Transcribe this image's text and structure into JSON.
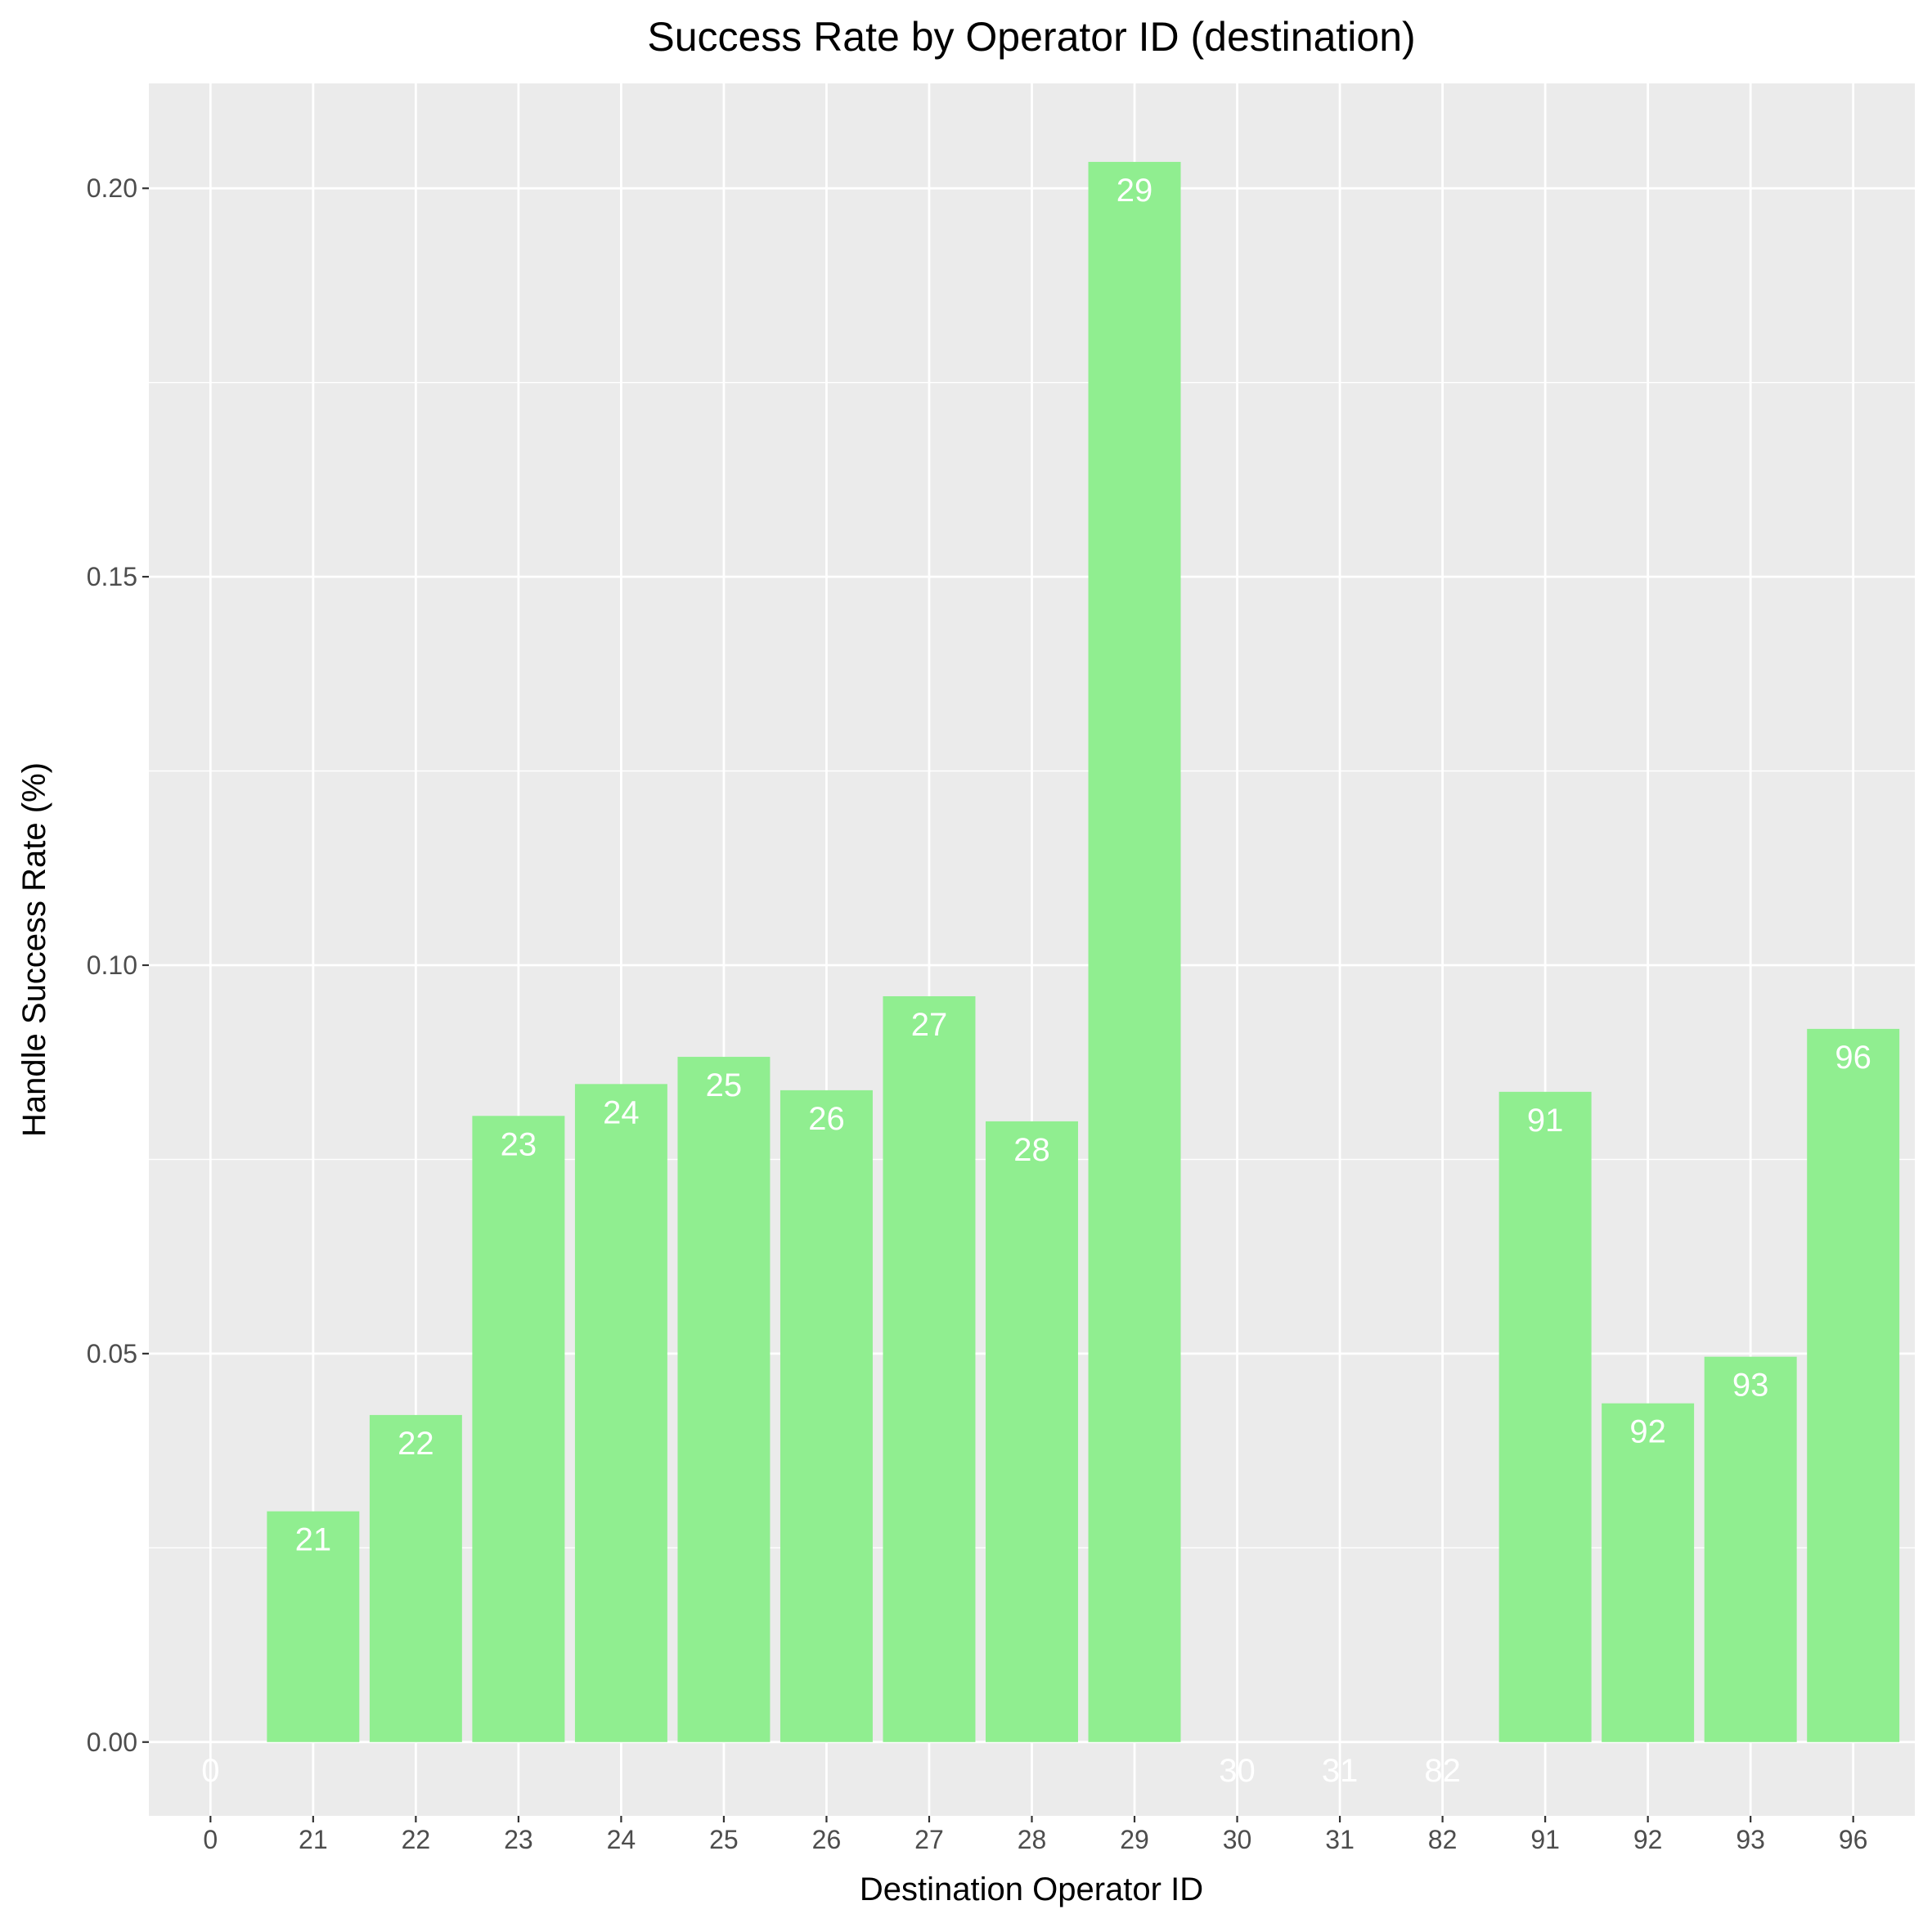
{
  "chart_data": {
    "type": "bar",
    "title": "Success Rate by Operator ID (destination)",
    "xlabel": "Destination Operator ID",
    "ylabel": "Handle Success Rate (%)",
    "categories": [
      "0",
      "21",
      "22",
      "23",
      "24",
      "25",
      "26",
      "27",
      "28",
      "29",
      "30",
      "31",
      "82",
      "91",
      "92",
      "93",
      "96"
    ],
    "values": [
      0,
      0.0297,
      0.0421,
      0.0806,
      0.0847,
      0.0882,
      0.0839,
      0.096,
      0.0799,
      0.2034,
      0,
      0,
      0,
      0.0837,
      0.0436,
      0.0496,
      0.0918
    ],
    "bar_labels": [
      "0",
      "21",
      "22",
      "23",
      "24",
      "25",
      "26",
      "27",
      "28",
      "29",
      "30",
      "31",
      "82",
      "91",
      "92",
      "93",
      "96"
    ],
    "yticks": [
      "0.00",
      "0.05",
      "0.10",
      "0.15",
      "0.20"
    ],
    "ylim": [
      -0.0095,
      0.2135
    ],
    "grid": true,
    "colors": {
      "bar": "#90EE90",
      "panel": "#EBEBEB",
      "grid": "#FFFFFF",
      "bar_label": "#FFFFFF"
    }
  }
}
